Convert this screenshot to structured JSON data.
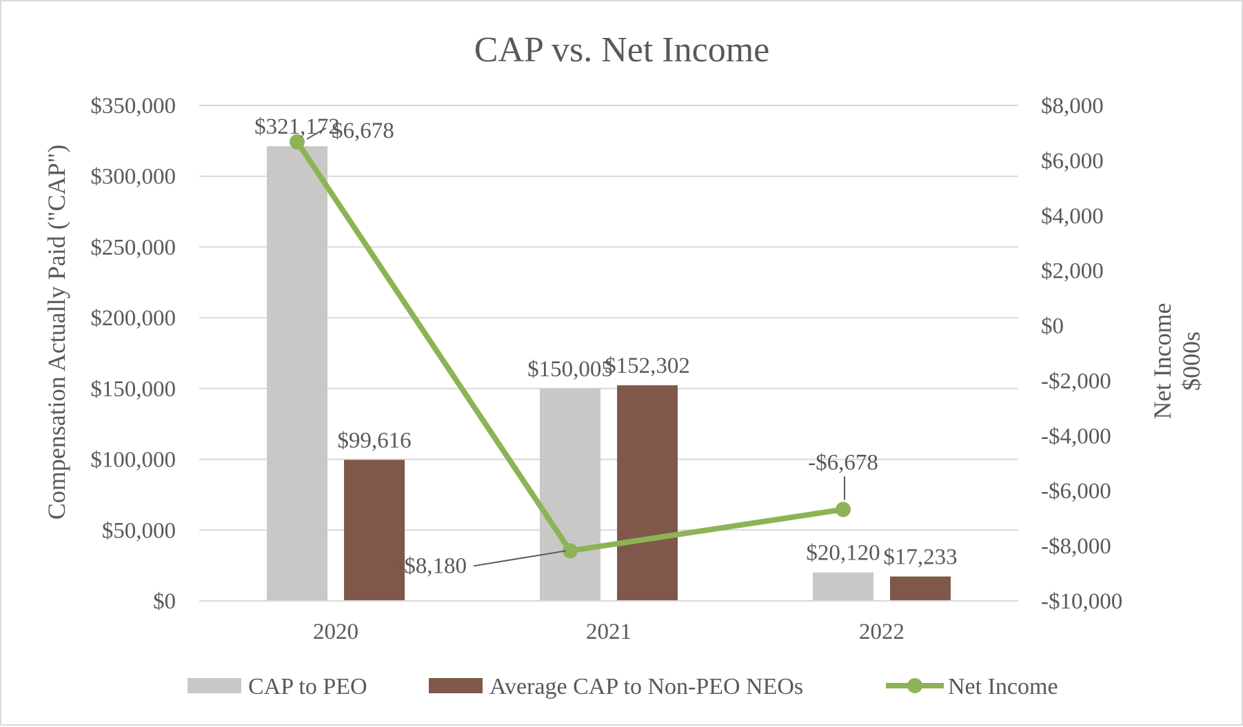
{
  "chart_data": {
    "type": "bar",
    "title": "CAP vs. Net Income",
    "categories": [
      "2020",
      "2021",
      "2022"
    ],
    "series": [
      {
        "name": "CAP to PEO",
        "type": "bar",
        "axis": "left",
        "color": "#c9c8c6",
        "values": [
          321172,
          150005,
          20120
        ],
        "labels": [
          "$321,172",
          "$150,005",
          "$20,120"
        ]
      },
      {
        "name": "Average CAP to Non-PEO NEOs",
        "type": "bar",
        "axis": "left",
        "color": "#7f584a",
        "values": [
          99616,
          152302,
          17233
        ],
        "labels": [
          "$99,616",
          "$152,302",
          "$17,233"
        ]
      },
      {
        "name": "Net Income",
        "type": "line",
        "axis": "right",
        "color": "#8db356",
        "values": [
          6678,
          -8180,
          -6678
        ],
        "labels": [
          "$6,678",
          "-$8,180",
          "-$6,678"
        ]
      }
    ],
    "ylabel": "Compensation Actually Paid (\"CAP\")",
    "y2label_line1": "Net Income",
    "y2label_line2": "$000s",
    "ylim": [
      0,
      350000
    ],
    "y2lim": [
      -10000,
      8000
    ],
    "yticks": [
      0,
      50000,
      100000,
      150000,
      200000,
      250000,
      300000,
      350000
    ],
    "yticklabels": [
      "$0",
      "$50,000",
      "$100,000",
      "$150,000",
      "$200,000",
      "$250,000",
      "$300,000",
      "$350,000"
    ],
    "y2ticks": [
      -10000,
      -8000,
      -6000,
      -4000,
      -2000,
      0,
      2000,
      4000,
      6000,
      8000
    ],
    "y2ticklabels": [
      "-$10,000",
      "-$8,000",
      "-$6,000",
      "-$4,000",
      "-$2,000",
      "$0",
      "$2,000",
      "$4,000",
      "$6,000",
      "$8,000"
    ],
    "grid": true,
    "legend_position": "bottom",
    "gridline_color": "#d9d9d9",
    "axis_color": "#d9d9d9"
  }
}
